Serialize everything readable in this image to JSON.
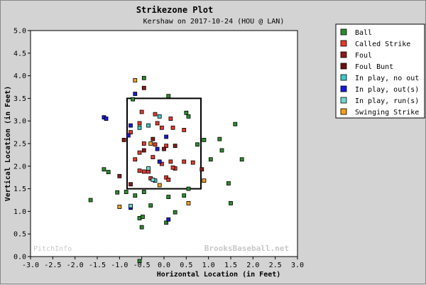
{
  "chart_data": {
    "type": "scatter",
    "title": "Strikezone Plot",
    "subtitle": "Kershaw on 2017-10-24 (HOU @ LAN)",
    "xlabel": "Horizontal Location (in Feet)",
    "ylabel": "Vertical Location (in Feet)",
    "xlim": [
      -3.0,
      3.0
    ],
    "ylim": [
      0.0,
      5.0
    ],
    "x_ticks": [
      "-3.0",
      "-2.5",
      "-2.0",
      "-1.5",
      "-1.0",
      "-0.5",
      "0.0",
      "0.5",
      "1.0",
      "1.5",
      "2.0",
      "2.5",
      "3.0"
    ],
    "y_ticks": [
      "0.0",
      "0.5",
      "1.0",
      "1.5",
      "2.0",
      "2.5",
      "3.0",
      "3.5",
      "4.0",
      "4.5",
      "5.0"
    ],
    "grid": false,
    "legend_position": "right",
    "strike_zone": {
      "x": [
        -0.83,
        0.83
      ],
      "y": [
        1.5,
        3.5
      ]
    },
    "watermark_left": "PitchInfo",
    "watermark_right": "BrooksBaseball.net",
    "series": [
      {
        "name": "Ball",
        "color": "#2e8b2e",
        "points": [
          [
            -0.55,
            -0.1
          ],
          [
            -1.65,
            1.25
          ],
          [
            -1.35,
            1.93
          ],
          [
            -1.25,
            1.87
          ],
          [
            -1.05,
            1.42
          ],
          [
            -0.85,
            1.43
          ],
          [
            -0.65,
            1.35
          ],
          [
            -0.45,
            1.43
          ],
          [
            -0.55,
            0.85
          ],
          [
            -0.48,
            0.88
          ],
          [
            -0.3,
            1.13
          ],
          [
            -0.5,
            0.65
          ],
          [
            0.05,
            0.75
          ],
          [
            0.25,
            0.98
          ],
          [
            0.1,
            1.32
          ],
          [
            0.45,
            1.35
          ],
          [
            0.55,
            1.5
          ],
          [
            1.5,
            1.18
          ],
          [
            1.45,
            1.62
          ],
          [
            1.75,
            2.15
          ],
          [
            1.3,
            2.35
          ],
          [
            1.25,
            2.6
          ],
          [
            1.6,
            2.93
          ],
          [
            1.05,
            2.15
          ],
          [
            0.9,
            2.58
          ],
          [
            0.75,
            2.48
          ],
          [
            0.55,
            3.1
          ],
          [
            0.5,
            3.18
          ],
          [
            0.1,
            3.55
          ],
          [
            -0.45,
            3.95
          ],
          [
            -0.7,
            3.48
          ]
        ]
      },
      {
        "name": "Called Strike",
        "color": "#e8382c",
        "points": [
          [
            -0.55,
            2.3
          ],
          [
            -0.45,
            2.5
          ],
          [
            -0.2,
            2.48
          ],
          [
            -0.15,
            2.95
          ],
          [
            -0.05,
            2.85
          ],
          [
            0.05,
            2.45
          ],
          [
            0.2,
            2.85
          ],
          [
            0.15,
            2.1
          ],
          [
            -0.05,
            2.05
          ],
          [
            -0.25,
            2.2
          ],
          [
            -0.35,
            1.88
          ],
          [
            -0.3,
            1.73
          ],
          [
            0.05,
            1.75
          ],
          [
            0.25,
            1.95
          ],
          [
            0.45,
            2.1
          ],
          [
            0.65,
            2.08
          ],
          [
            -0.65,
            2.15
          ],
          [
            0.15,
            3.05
          ],
          [
            -0.2,
            3.15
          ],
          [
            -0.55,
            2.95
          ],
          [
            -0.5,
            3.2
          ],
          [
            -0.75,
            2.75
          ],
          [
            0.2,
            1.97
          ],
          [
            0.1,
            1.7
          ],
          [
            -0.45,
            1.88
          ],
          [
            -0.55,
            1.9
          ],
          [
            0.45,
            2.8
          ]
        ]
      },
      {
        "name": "Foul",
        "color": "#8b1a1a",
        "points": [
          [
            -0.45,
            3.73
          ],
          [
            -0.9,
            2.58
          ],
          [
            -1.0,
            1.78
          ],
          [
            -0.75,
            1.6
          ],
          [
            -0.25,
            2.6
          ],
          [
            -0.45,
            2.35
          ],
          [
            0.25,
            2.45
          ],
          [
            0.0,
            2.38
          ],
          [
            0.85,
            1.93
          ]
        ]
      },
      {
        "name": "Foul Bunt",
        "color": "#6b1010",
        "points": []
      },
      {
        "name": "In play, no out",
        "color": "#40c8c8",
        "points": [
          [
            -0.2,
            1.68
          ],
          [
            -0.35,
            2.9
          ],
          [
            -0.1,
            3.1
          ],
          [
            -0.55,
            2.85
          ]
        ]
      },
      {
        "name": "In play, out(s)",
        "color": "#1a1ad8",
        "points": [
          [
            -1.35,
            3.08
          ],
          [
            -1.3,
            3.05
          ],
          [
            -0.75,
            2.9
          ],
          [
            -0.8,
            2.68
          ],
          [
            -0.65,
            3.6
          ],
          [
            -0.1,
            2.1
          ],
          [
            0.05,
            2.65
          ],
          [
            -0.15,
            2.38
          ],
          [
            -0.75,
            1.08
          ],
          [
            0.1,
            0.82
          ]
        ]
      },
      {
        "name": "In play, run(s)",
        "color": "#70d8d0",
        "points": [
          [
            -0.25,
            1.7
          ],
          [
            -0.35,
            1.95
          ],
          [
            -0.75,
            1.12
          ]
        ]
      },
      {
        "name": "Swinging Strike",
        "color": "#f0a020",
        "points": [
          [
            -0.65,
            3.9
          ],
          [
            -0.3,
            2.5
          ],
          [
            -0.1,
            1.58
          ],
          [
            0.9,
            1.68
          ],
          [
            0.55,
            1.18
          ],
          [
            -1.0,
            1.1
          ]
        ]
      }
    ]
  }
}
